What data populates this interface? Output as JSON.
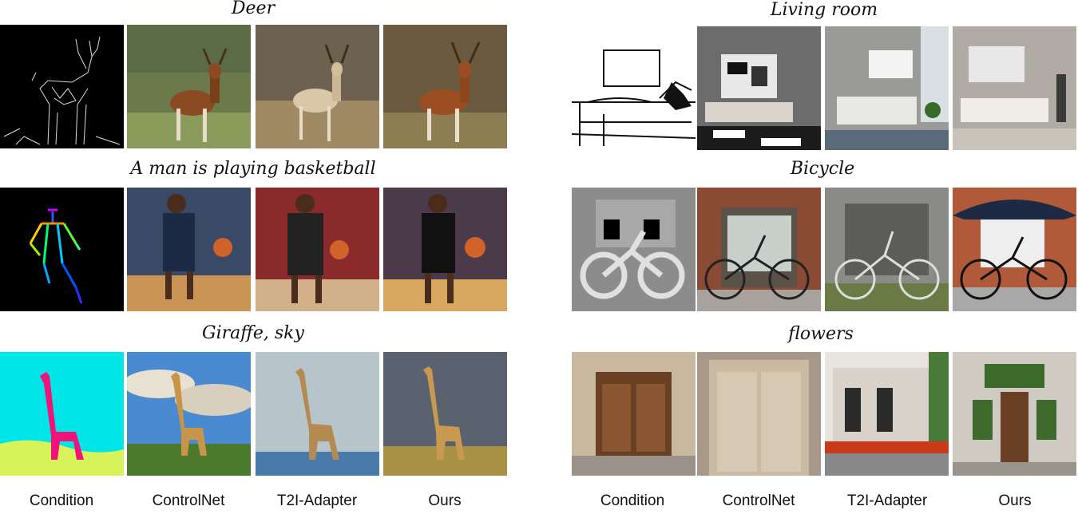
{
  "panels": {
    "left": {
      "rows": [
        {
          "title": "Deer"
        },
        {
          "title": "A man is playing basketball"
        },
        {
          "title": "Giraffe, sky"
        }
      ],
      "columns": [
        "Condition",
        "ControlNet",
        "T2I-Adapter",
        "Ours"
      ]
    },
    "right": {
      "rows": [
        {
          "title": "Living room"
        },
        {
          "title": "Bicycle"
        },
        {
          "title": "flowers"
        }
      ],
      "columns": [
        "Condition",
        "ControlNet",
        "T2I-Adapter",
        "Ours"
      ]
    }
  },
  "colors": {
    "edge_bg": "#000000",
    "seg_sky": "#00e5e8",
    "seg_giraffe": "#f0147a",
    "seg_ground": "#d8f25a",
    "court": "#c9944f",
    "depth_bg": "#8c8c8c"
  }
}
